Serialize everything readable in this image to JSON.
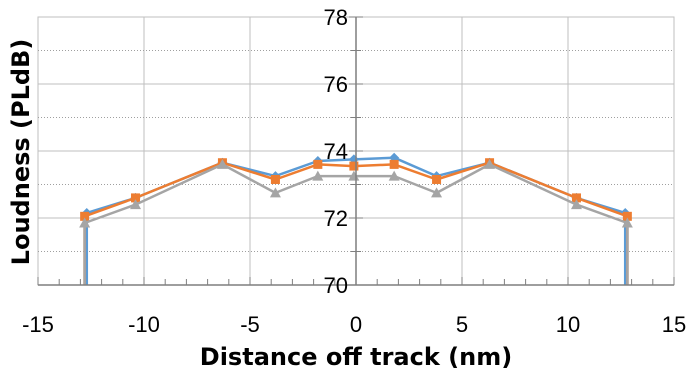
{
  "chart_data": {
    "type": "line",
    "title": "",
    "xlabel": "Distance off track (nm)",
    "ylabel": "Loudness (PLdB)",
    "xlim": [
      -15,
      15
    ],
    "ylim": [
      70,
      78
    ],
    "x_ticks": [
      "-15",
      "-10",
      "-5",
      "0",
      "5",
      "10",
      "15"
    ],
    "y_ticks": [
      "70",
      "72",
      "74",
      "76",
      "78"
    ],
    "grid": true,
    "legend": "none",
    "series": [
      {
        "color": "#5b9bd5",
        "marker": "diamond",
        "points": [
          [
            -12.7,
            68.0
          ],
          [
            -12.7,
            72.15
          ],
          [
            -10.4,
            72.6
          ],
          [
            -6.3,
            73.65
          ],
          [
            -3.8,
            73.25
          ],
          [
            -1.8,
            73.7
          ],
          [
            -0.1,
            73.75
          ],
          [
            1.8,
            73.8
          ],
          [
            3.8,
            73.25
          ],
          [
            6.3,
            73.65
          ],
          [
            10.4,
            72.6
          ],
          [
            12.7,
            72.15
          ],
          [
            12.7,
            68.0
          ]
        ]
      },
      {
        "color": "#ed7d31",
        "marker": "square",
        "points": [
          [
            -12.8,
            68.0
          ],
          [
            -12.8,
            72.05
          ],
          [
            -10.4,
            72.6
          ],
          [
            -6.3,
            73.65
          ],
          [
            -3.8,
            73.15
          ],
          [
            -1.8,
            73.6
          ],
          [
            -0.1,
            73.55
          ],
          [
            1.8,
            73.6
          ],
          [
            3.8,
            73.15
          ],
          [
            6.3,
            73.65
          ],
          [
            10.4,
            72.6
          ],
          [
            12.8,
            72.05
          ],
          [
            12.8,
            68.0
          ]
        ]
      },
      {
        "color": "#a5a5a5",
        "marker": "triangle",
        "points": [
          [
            -12.8,
            68.0
          ],
          [
            -12.8,
            71.85
          ],
          [
            -10.4,
            72.4
          ],
          [
            -6.3,
            73.6
          ],
          [
            -3.8,
            72.75
          ],
          [
            -1.8,
            73.25
          ],
          [
            -0.1,
            73.25
          ],
          [
            1.8,
            73.25
          ],
          [
            3.8,
            72.75
          ],
          [
            6.3,
            73.6
          ],
          [
            10.4,
            72.4
          ],
          [
            12.8,
            71.85
          ],
          [
            12.8,
            68.0
          ]
        ]
      }
    ]
  }
}
